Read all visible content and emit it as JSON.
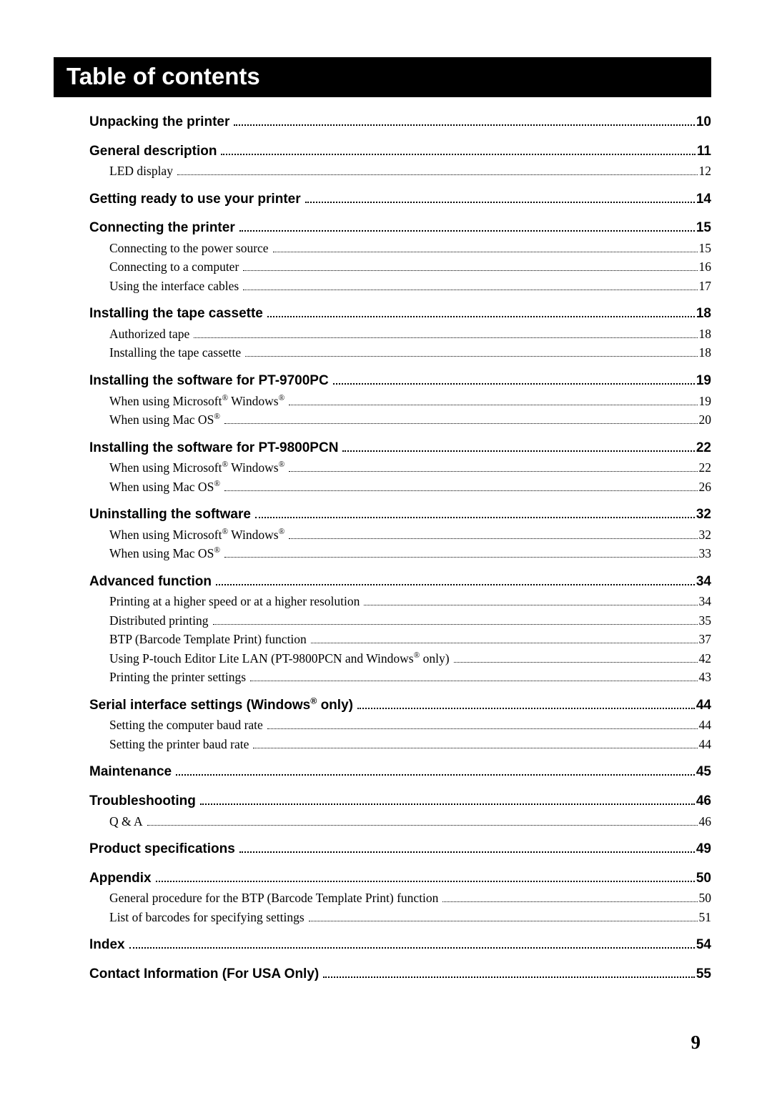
{
  "title": "Table of contents",
  "page_number": "9",
  "sections": [
    {
      "heading": {
        "text": "Unpacking the printer",
        "page": "10"
      },
      "items": []
    },
    {
      "heading": {
        "text": "General description",
        "page": "11"
      },
      "items": [
        {
          "text": "LED display",
          "page": "12"
        }
      ]
    },
    {
      "heading": {
        "text": "Getting ready to use your printer",
        "page": "14"
      },
      "items": []
    },
    {
      "heading": {
        "text": "Connecting the printer",
        "page": "15"
      },
      "items": [
        {
          "text": "Connecting to the power source",
          "page": "15"
        },
        {
          "text": "Connecting to a computer",
          "page": "16"
        },
        {
          "text": "Using the interface cables",
          "page": "17"
        }
      ]
    },
    {
      "heading": {
        "text": "Installing the tape cassette",
        "page": "18"
      },
      "items": [
        {
          "text": "Authorized tape",
          "page": "18"
        },
        {
          "text": "Installing the tape cassette",
          "page": "18"
        }
      ]
    },
    {
      "heading": {
        "text": "Installing the software for PT-9700PC",
        "page": "19"
      },
      "items": [
        {
          "text_html": "When using Microsoft<span class=\"reg\">®</span> Windows<span class=\"reg\">®</span>",
          "page": "19"
        },
        {
          "text_html": "When using Mac OS<span class=\"reg\">®</span>",
          "page": "20"
        }
      ]
    },
    {
      "heading": {
        "text": "Installing the software for PT-9800PCN",
        "page": "22"
      },
      "items": [
        {
          "text_html": "When using Microsoft<span class=\"reg\">®</span> Windows<span class=\"reg\">®</span>",
          "page": "22"
        },
        {
          "text_html": "When using Mac OS<span class=\"reg\">®</span>",
          "page": "26"
        }
      ]
    },
    {
      "heading": {
        "text": "Uninstalling the software",
        "page": "32"
      },
      "items": [
        {
          "text_html": "When using Microsoft<span class=\"reg\">®</span> Windows<span class=\"reg\">®</span>",
          "page": "32"
        },
        {
          "text_html": "When using Mac OS<span class=\"reg\">®</span>",
          "page": "33"
        }
      ]
    },
    {
      "heading": {
        "text": "Advanced function",
        "page": "34"
      },
      "items": [
        {
          "text": "Printing at a higher speed or at a higher resolution",
          "page": "34"
        },
        {
          "text": "Distributed printing",
          "page": "35"
        },
        {
          "text": "BTP (Barcode Template Print) function",
          "page": "37"
        },
        {
          "text_html": "Using P-touch Editor Lite LAN (PT-9800PCN and Windows<span class=\"reg\">®</span> only)",
          "page": "42"
        },
        {
          "text": "Printing the printer settings",
          "page": "43"
        }
      ]
    },
    {
      "heading": {
        "text_html": "Serial interface settings (Windows<span class=\"reg\">®</span> only)",
        "page": "44"
      },
      "items": [
        {
          "text": "Setting the computer baud rate",
          "page": "44"
        },
        {
          "text": "Setting the printer baud rate",
          "page": "44"
        }
      ]
    },
    {
      "heading": {
        "text": "Maintenance",
        "page": "45"
      },
      "items": []
    },
    {
      "heading": {
        "text": "Troubleshooting",
        "page": "46"
      },
      "items": [
        {
          "text": "Q & A",
          "page": "46"
        }
      ]
    },
    {
      "heading": {
        "text": "Product specifications",
        "page": "49"
      },
      "items": []
    },
    {
      "heading": {
        "text": "Appendix",
        "page": "50"
      },
      "items": [
        {
          "text": "General procedure for the BTP (Barcode Template Print) function",
          "page": "50"
        },
        {
          "text": "List of barcodes for specifying settings",
          "page": "51"
        }
      ]
    },
    {
      "heading": {
        "text": "Index",
        "page": "54"
      },
      "items": []
    },
    {
      "heading": {
        "text": "Contact Information (For USA Only)",
        "page": "55"
      },
      "items": []
    }
  ]
}
